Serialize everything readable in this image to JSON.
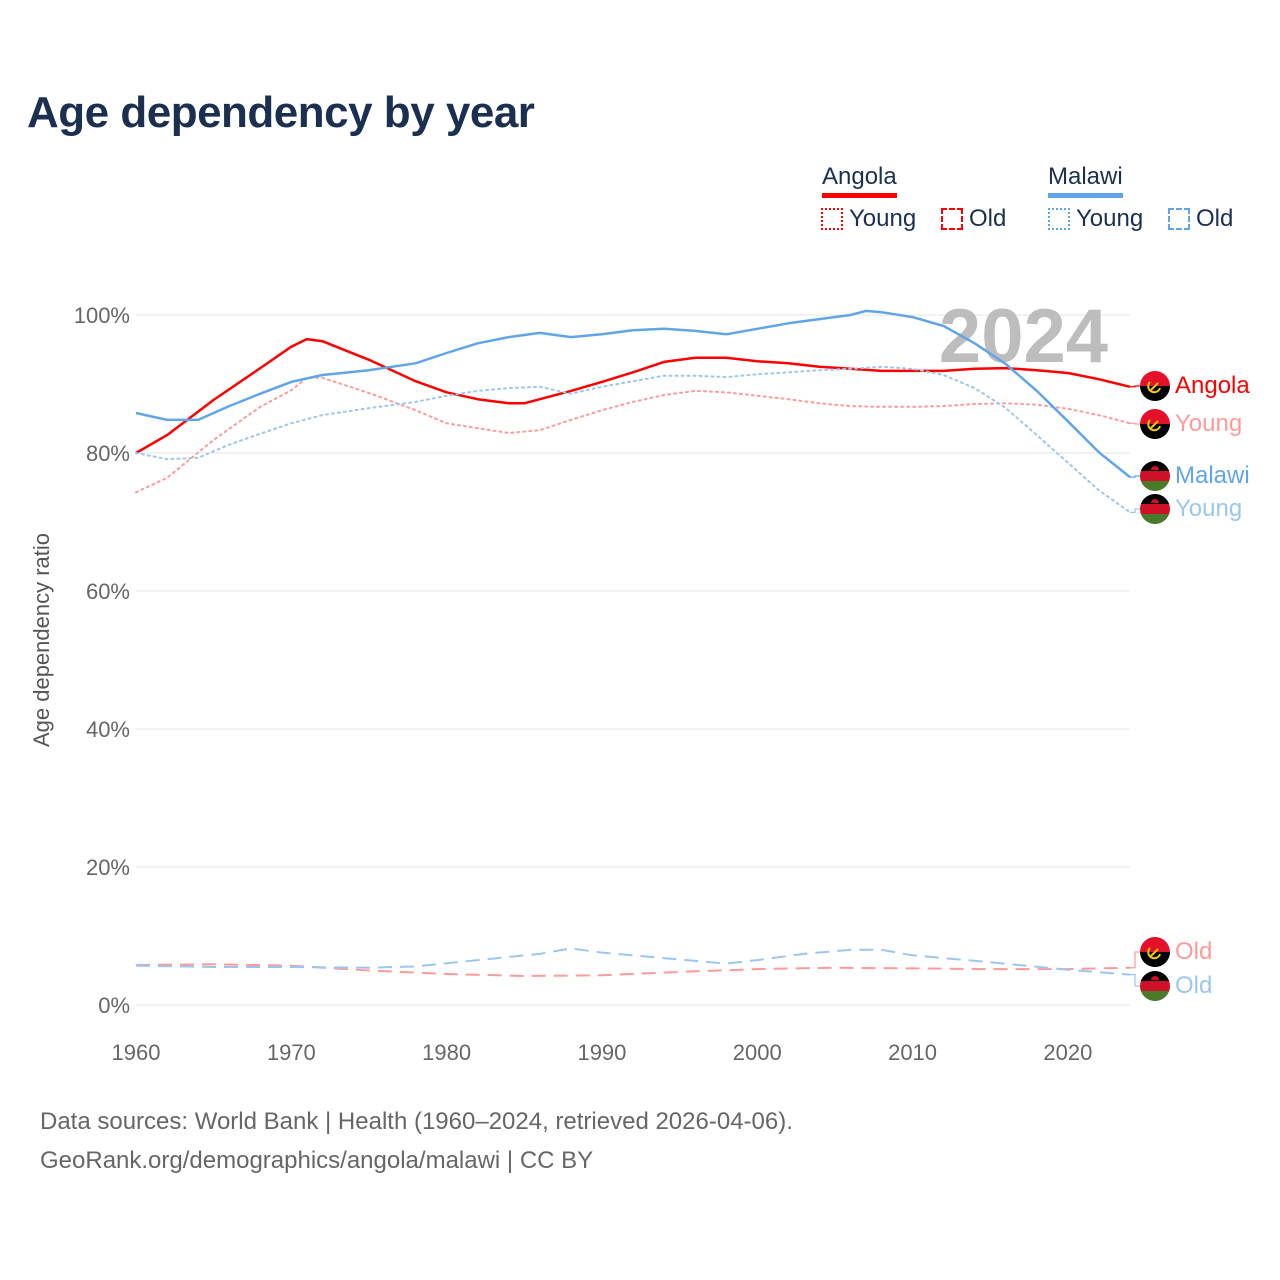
{
  "title": "Age dependency by year",
  "legend": {
    "countries": [
      {
        "name": "Angola",
        "color": "#ff0000",
        "young_label": "Young",
        "old_label": "Old"
      },
      {
        "name": "Malawi",
        "color": "#60a5e8",
        "young_label": "Young",
        "old_label": "Old"
      }
    ]
  },
  "watermark_year": "2024",
  "footer": {
    "line1": "Data sources: World Bank | Health (1960–2024, retrieved 2026-04-06).",
    "line2": "GeoRank.org/demographics/angola/malawi | CC BY"
  },
  "end_labels": {
    "angola_total": "Angola",
    "angola_young": "Young",
    "malawi_total": "Malawi",
    "malawi_young": "Young",
    "angola_old": "Old",
    "malawi_old": "Old"
  },
  "chart_data": {
    "type": "line",
    "title": "Age dependency by year",
    "xlabel": "",
    "ylabel": "Age dependency ratio",
    "xlim": [
      1960,
      2024
    ],
    "ylim": [
      0,
      100
    ],
    "x_ticks": [
      "1960",
      "1970",
      "1980",
      "1990",
      "2000",
      "2010",
      "2020"
    ],
    "y_ticks": [
      "0%",
      "20%",
      "40%",
      "60%",
      "80%",
      "100%"
    ],
    "grid": true,
    "series": [
      {
        "name": "Angola",
        "kind": "total",
        "color": "#ff0000",
        "style": "solid",
        "x": [
          1960,
          1962,
          1965,
          1968,
          1970,
          1971,
          1972,
          1975,
          1978,
          1980,
          1982,
          1984,
          1985,
          1988,
          1990,
          1992,
          1994,
          1996,
          1998,
          2000,
          2002,
          2004,
          2006,
          2008,
          2010,
          2012,
          2014,
          2016,
          2018,
          2020,
          2022,
          2024
        ],
        "y": [
          80.0,
          82.6,
          87.7,
          92.3,
          95.4,
          96.5,
          96.2,
          93.5,
          90.4,
          88.8,
          87.8,
          87.2,
          87.2,
          89.0,
          90.3,
          91.7,
          93.2,
          93.8,
          93.8,
          93.3,
          93.0,
          92.5,
          92.2,
          91.9,
          91.9,
          91.9,
          92.2,
          92.3,
          92.0,
          91.6,
          90.7,
          89.6
        ]
      },
      {
        "name": "Angola Young",
        "kind": "young",
        "color": "#ff9a9a",
        "style": "dotted",
        "x": [
          1960,
          1962,
          1965,
          1968,
          1970,
          1971,
          1972,
          1975,
          1978,
          1980,
          1982,
          1984,
          1986,
          1988,
          1990,
          1992,
          1994,
          1996,
          1998,
          2000,
          2002,
          2004,
          2006,
          2008,
          2010,
          2012,
          2014,
          2016,
          2018,
          2020,
          2022,
          2024
        ],
        "y": [
          74.3,
          76.4,
          81.9,
          86.7,
          89.1,
          90.9,
          90.9,
          88.7,
          86.2,
          84.3,
          83.6,
          82.9,
          83.3,
          84.8,
          86.2,
          87.4,
          88.4,
          89.0,
          88.8,
          88.3,
          87.8,
          87.2,
          86.8,
          86.7,
          86.7,
          86.8,
          87.1,
          87.2,
          87.0,
          86.4,
          85.5,
          84.3
        ]
      },
      {
        "name": "Angola Old",
        "kind": "old",
        "color": "#ff9a9a",
        "style": "dashed",
        "x": [
          1960,
          1965,
          1970,
          1975,
          1980,
          1985,
          1990,
          1995,
          2000,
          2005,
          2010,
          2015,
          2020,
          2024
        ],
        "y": [
          5.8,
          5.9,
          5.7,
          5.0,
          4.5,
          4.2,
          4.3,
          4.8,
          5.2,
          5.4,
          5.3,
          5.2,
          5.2,
          5.4
        ]
      },
      {
        "name": "Malawi",
        "kind": "total",
        "color": "#60a5e8",
        "style": "solid",
        "x": [
          1960,
          1962,
          1964,
          1966,
          1968,
          1970,
          1972,
          1975,
          1978,
          1980,
          1982,
          1984,
          1986,
          1988,
          1990,
          1992,
          1994,
          1996,
          1998,
          2000,
          2002,
          2004,
          2006,
          2007,
          2008,
          2010,
          2012,
          2014,
          2016,
          2018,
          2020,
          2022,
          2024
        ],
        "y": [
          85.8,
          84.8,
          84.8,
          86.8,
          88.6,
          90.3,
          91.3,
          92.0,
          93.0,
          94.5,
          95.9,
          96.8,
          97.4,
          96.8,
          97.2,
          97.8,
          98.0,
          97.7,
          97.2,
          98.0,
          98.8,
          99.4,
          100.0,
          100.6,
          100.4,
          99.7,
          98.4,
          95.9,
          92.9,
          89.0,
          84.6,
          80.1,
          76.5
        ]
      },
      {
        "name": "Malawi Young",
        "kind": "young",
        "color": "#9cc6f0",
        "style": "dotted",
        "x": [
          1960,
          1962,
          1964,
          1966,
          1968,
          1970,
          1972,
          1975,
          1978,
          1980,
          1982,
          1984,
          1986,
          1988,
          1990,
          1992,
          1994,
          1996,
          1998,
          2000,
          2002,
          2004,
          2006,
          2008,
          2010,
          2012,
          2014,
          2016,
          2018,
          2020,
          2022,
          2024
        ],
        "y": [
          80.0,
          79.1,
          79.3,
          81.2,
          82.8,
          84.3,
          85.5,
          86.5,
          87.4,
          88.3,
          89.0,
          89.4,
          89.6,
          88.6,
          89.6,
          90.4,
          91.2,
          91.2,
          91.0,
          91.4,
          91.7,
          92.0,
          92.2,
          92.5,
          92.2,
          91.3,
          89.4,
          86.5,
          82.6,
          78.6,
          74.6,
          71.4
        ]
      },
      {
        "name": "Malawi Old",
        "kind": "old",
        "color": "#9cc6f0",
        "style": "dashed",
        "x": [
          1960,
          1965,
          1970,
          1975,
          1978,
          1982,
          1986,
          1988,
          1990,
          1995,
          1998,
          2000,
          2003,
          2006,
          2008,
          2010,
          2015,
          2020,
          2024
        ],
        "y": [
          5.7,
          5.5,
          5.5,
          5.4,
          5.6,
          6.5,
          7.4,
          8.2,
          7.6,
          6.6,
          6.0,
          6.5,
          7.4,
          8.0,
          8.0,
          7.2,
          6.2,
          5.1,
          4.4
        ]
      }
    ]
  }
}
